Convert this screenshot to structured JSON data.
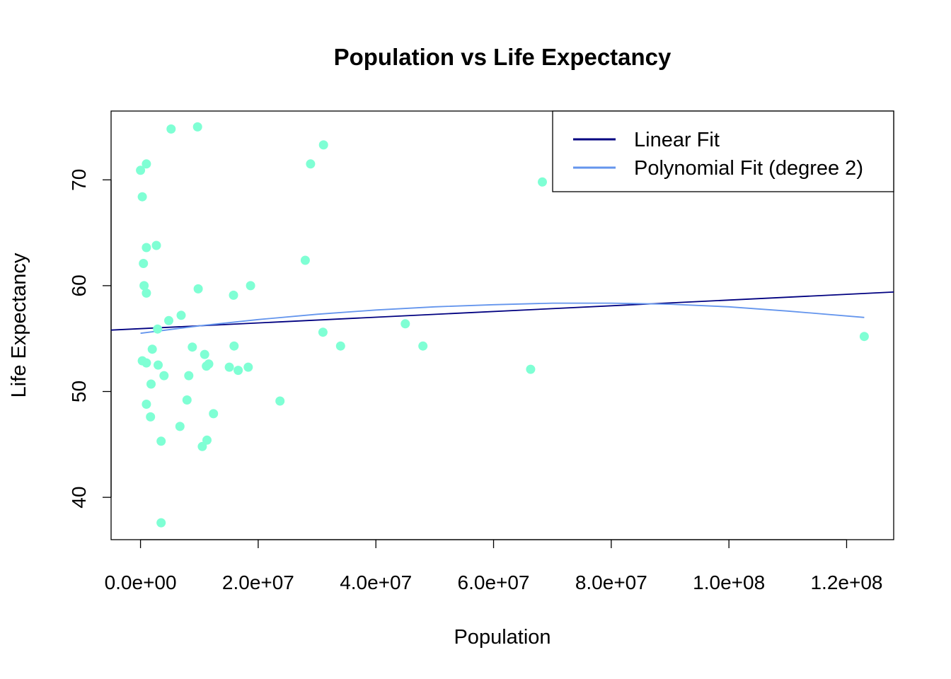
{
  "chart_data": {
    "type": "scatter",
    "title": "Population vs Life Expectancy",
    "xlabel": "Population",
    "ylabel": "Life Expectancy",
    "xlim": [
      -5000000,
      128000000
    ],
    "ylim": [
      36,
      76.5
    ],
    "x_ticks": [
      {
        "value": 0,
        "label": "0.0e+00"
      },
      {
        "value": 20000000,
        "label": "2.0e+07"
      },
      {
        "value": 40000000,
        "label": "4.0e+07"
      },
      {
        "value": 60000000,
        "label": "6.0e+07"
      },
      {
        "value": 80000000,
        "label": "8.0e+07"
      },
      {
        "value": 100000000,
        "label": "1.0e+08"
      },
      {
        "value": 120000000,
        "label": "1.2e+08"
      }
    ],
    "y_ticks": [
      {
        "value": 40,
        "label": "40"
      },
      {
        "value": 50,
        "label": "50"
      },
      {
        "value": 60,
        "label": "60"
      },
      {
        "value": 70,
        "label": "70"
      }
    ],
    "grid": false,
    "legend_position": "top-right",
    "point_color": "#7fffd4",
    "points": [
      [
        0,
        70.9
      ],
      [
        300000,
        68.4
      ],
      [
        500000,
        62.1
      ],
      [
        600000,
        60.0
      ],
      [
        1000000,
        59.3
      ],
      [
        1000000,
        63.6
      ],
      [
        1000000,
        71.5
      ],
      [
        300000,
        52.9
      ],
      [
        1000000,
        52.7
      ],
      [
        1000000,
        48.8
      ],
      [
        2000000,
        54.0
      ],
      [
        1800000,
        50.7
      ],
      [
        1700000,
        47.6
      ],
      [
        2700000,
        63.8
      ],
      [
        2900000,
        55.9
      ],
      [
        3000000,
        52.5
      ],
      [
        3500000,
        45.3
      ],
      [
        3500000,
        37.6
      ],
      [
        4000000,
        51.5
      ],
      [
        4800000,
        56.7
      ],
      [
        5200000,
        74.8
      ],
      [
        6700000,
        46.7
      ],
      [
        6900000,
        57.2
      ],
      [
        7900000,
        49.2
      ],
      [
        8200000,
        51.5
      ],
      [
        8800000,
        54.2
      ],
      [
        9700000,
        75.0
      ],
      [
        9800000,
        59.7
      ],
      [
        10500000,
        44.8
      ],
      [
        10900000,
        53.5
      ],
      [
        11200000,
        52.4
      ],
      [
        11300000,
        45.4
      ],
      [
        11600000,
        52.6
      ],
      [
        12400000,
        47.9
      ],
      [
        15100000,
        52.3
      ],
      [
        15800000,
        59.1
      ],
      [
        15900000,
        54.3
      ],
      [
        16600000,
        52.0
      ],
      [
        18300000,
        52.3
      ],
      [
        18700000,
        60.0
      ],
      [
        23700000,
        49.1
      ],
      [
        28000000,
        62.4
      ],
      [
        28900000,
        71.5
      ],
      [
        31000000,
        55.6
      ],
      [
        31100000,
        73.3
      ],
      [
        34000000,
        54.3
      ],
      [
        45000000,
        56.4
      ],
      [
        48000000,
        54.3
      ],
      [
        66300000,
        52.1
      ],
      [
        68300000,
        69.8
      ],
      [
        123000000,
        55.2
      ]
    ],
    "series": [
      {
        "name": "Linear Fit",
        "color": "#000080",
        "kind": "line",
        "x": [
          -5000000,
          128000000
        ],
        "y": [
          55.8,
          59.4
        ]
      },
      {
        "name": "Polynomial Fit (degree 2)",
        "color": "#6495ed",
        "kind": "curve",
        "x": [
          0,
          10000000,
          20000000,
          30000000,
          40000000,
          50000000,
          60000000,
          70000000,
          80000000,
          90000000,
          100000000,
          110000000,
          123000000
        ],
        "y": [
          55.5,
          56.2,
          56.8,
          57.3,
          57.7,
          58.0,
          58.2,
          58.35,
          58.35,
          58.25,
          58.0,
          57.6,
          57.0
        ]
      }
    ]
  }
}
